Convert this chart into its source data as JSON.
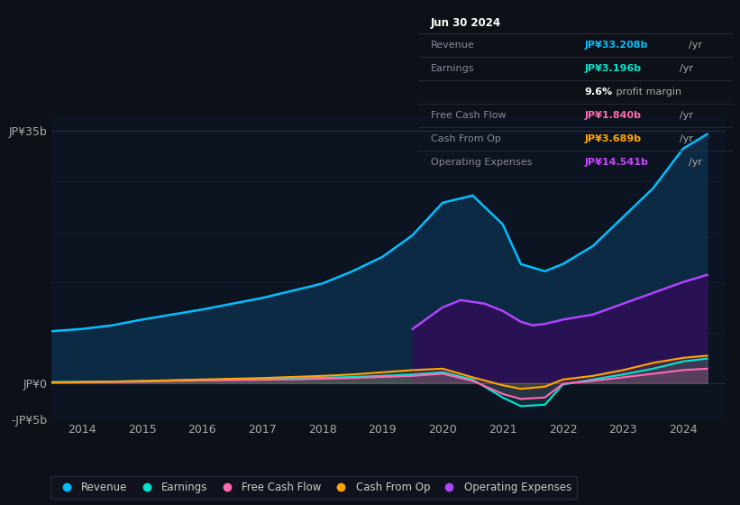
{
  "background_color": "#0d1117",
  "plot_bg_color": "#0d1421",
  "years": [
    2013.5,
    2014,
    2014.5,
    2015,
    2015.5,
    2016,
    2016.5,
    2017,
    2017.5,
    2018,
    2018.5,
    2019,
    2019.5,
    2020,
    2020.5,
    2021,
    2021.3,
    2021.7,
    2022,
    2022.5,
    2023,
    2023.5,
    2024,
    2024.4
  ],
  "revenue": [
    7.2,
    7.5,
    8.0,
    8.8,
    9.5,
    10.2,
    11.0,
    11.8,
    12.8,
    13.8,
    15.5,
    17.5,
    20.5,
    25.0,
    26.0,
    22.0,
    16.5,
    15.5,
    16.5,
    19.0,
    23.0,
    27.0,
    32.5,
    34.5
  ],
  "earnings": [
    0.15,
    0.18,
    0.22,
    0.28,
    0.35,
    0.42,
    0.5,
    0.55,
    0.65,
    0.75,
    0.85,
    1.0,
    1.2,
    1.5,
    0.5,
    -2.0,
    -3.2,
    -3.0,
    -0.2,
    0.5,
    1.2,
    2.0,
    3.0,
    3.4
  ],
  "free_cash_flow": [
    0.05,
    0.1,
    0.15,
    0.2,
    0.3,
    0.35,
    0.4,
    0.45,
    0.5,
    0.6,
    0.7,
    0.85,
    1.0,
    1.3,
    0.3,
    -1.5,
    -2.2,
    -2.0,
    -0.1,
    0.3,
    0.8,
    1.3,
    1.8,
    2.0
  ],
  "cash_from_op": [
    0.1,
    0.15,
    0.2,
    0.3,
    0.4,
    0.5,
    0.6,
    0.7,
    0.85,
    1.0,
    1.2,
    1.5,
    1.8,
    2.0,
    0.8,
    -0.3,
    -0.8,
    -0.5,
    0.5,
    1.0,
    1.8,
    2.8,
    3.5,
    3.8
  ],
  "op_expenses_x": [
    2019.5,
    2020,
    2020.3,
    2020.7,
    2021,
    2021.3,
    2021.5,
    2021.7,
    2022,
    2022.5,
    2023,
    2023.5,
    2024,
    2024.4
  ],
  "op_expenses_y": [
    7.5,
    10.5,
    11.5,
    11.0,
    10.0,
    8.5,
    8.0,
    8.2,
    8.8,
    9.5,
    11.0,
    12.5,
    14.0,
    15.0
  ],
  "ylim": [
    -5,
    37
  ],
  "xlim": [
    2013.5,
    2024.7
  ],
  "revenue_color": "#00bfff",
  "earnings_color": "#00e5cc",
  "fcf_color": "#ff69b4",
  "cash_from_op_color": "#ffa500",
  "op_expenses_color": "#b044ff",
  "revenue_fill_color": "#0d2a45",
  "op_expenses_fill_color": "#2d1055",
  "info_box": {
    "title": "Jun 30 2024",
    "rows": [
      {
        "label": "Revenue",
        "value": "JP¥33.208b",
        "suffix": " /yr",
        "value_color": "#00bfff",
        "label_color": "#888899",
        "is_margin": false
      },
      {
        "label": "Earnings",
        "value": "JP¥3.196b",
        "suffix": " /yr",
        "value_color": "#00e5cc",
        "label_color": "#888899",
        "is_margin": false
      },
      {
        "label": "",
        "value": "9.6%",
        "suffix": " profit margin",
        "value_color": "#ffffff",
        "label_color": "#888899",
        "is_margin": true
      },
      {
        "label": "Free Cash Flow",
        "value": "JP¥1.840b",
        "suffix": " /yr",
        "value_color": "#ff69b4",
        "label_color": "#888899",
        "is_margin": false
      },
      {
        "label": "Cash From Op",
        "value": "JP¥3.689b",
        "suffix": " /yr",
        "value_color": "#ffa500",
        "label_color": "#888899",
        "is_margin": false
      },
      {
        "label": "Operating Expenses",
        "value": "JP¥14.541b",
        "suffix": " /yr",
        "value_color": "#cc44ff",
        "label_color": "#888899",
        "is_margin": false
      }
    ]
  },
  "legend": [
    {
      "label": "Revenue",
      "color": "#00bfff"
    },
    {
      "label": "Earnings",
      "color": "#00e5cc"
    },
    {
      "label": "Free Cash Flow",
      "color": "#ff69b4"
    },
    {
      "label": "Cash From Op",
      "color": "#ffa500"
    },
    {
      "label": "Operating Expenses",
      "color": "#b044ff"
    }
  ],
  "ytick_positions": [
    -5,
    0,
    35
  ],
  "ytick_labels": [
    "-JP¥5b",
    "JP¥0",
    "JP¥35b"
  ],
  "xtick_positions": [
    2014,
    2015,
    2016,
    2017,
    2018,
    2019,
    2020,
    2021,
    2022,
    2023,
    2024
  ]
}
